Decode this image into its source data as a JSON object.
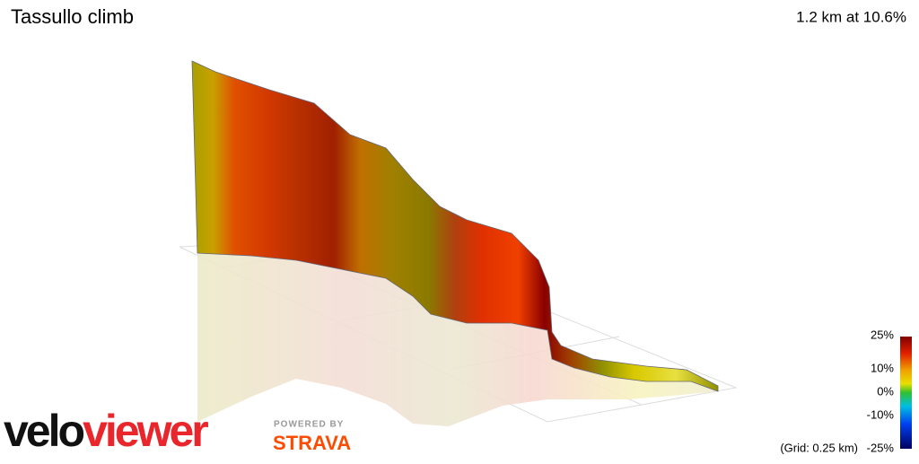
{
  "header": {
    "title": "Tassullo climb",
    "summary": "1.2 km at 10.6%"
  },
  "legend": {
    "labels": [
      "25%",
      "10%",
      "0%",
      "-10%",
      "-25%"
    ],
    "grid_note": "(Grid: 0.25 km)"
  },
  "branding": {
    "logo_dark": "velo",
    "logo_red": "viewer",
    "powered_by": "POWERED BY",
    "partner": "STRAVA"
  }
}
